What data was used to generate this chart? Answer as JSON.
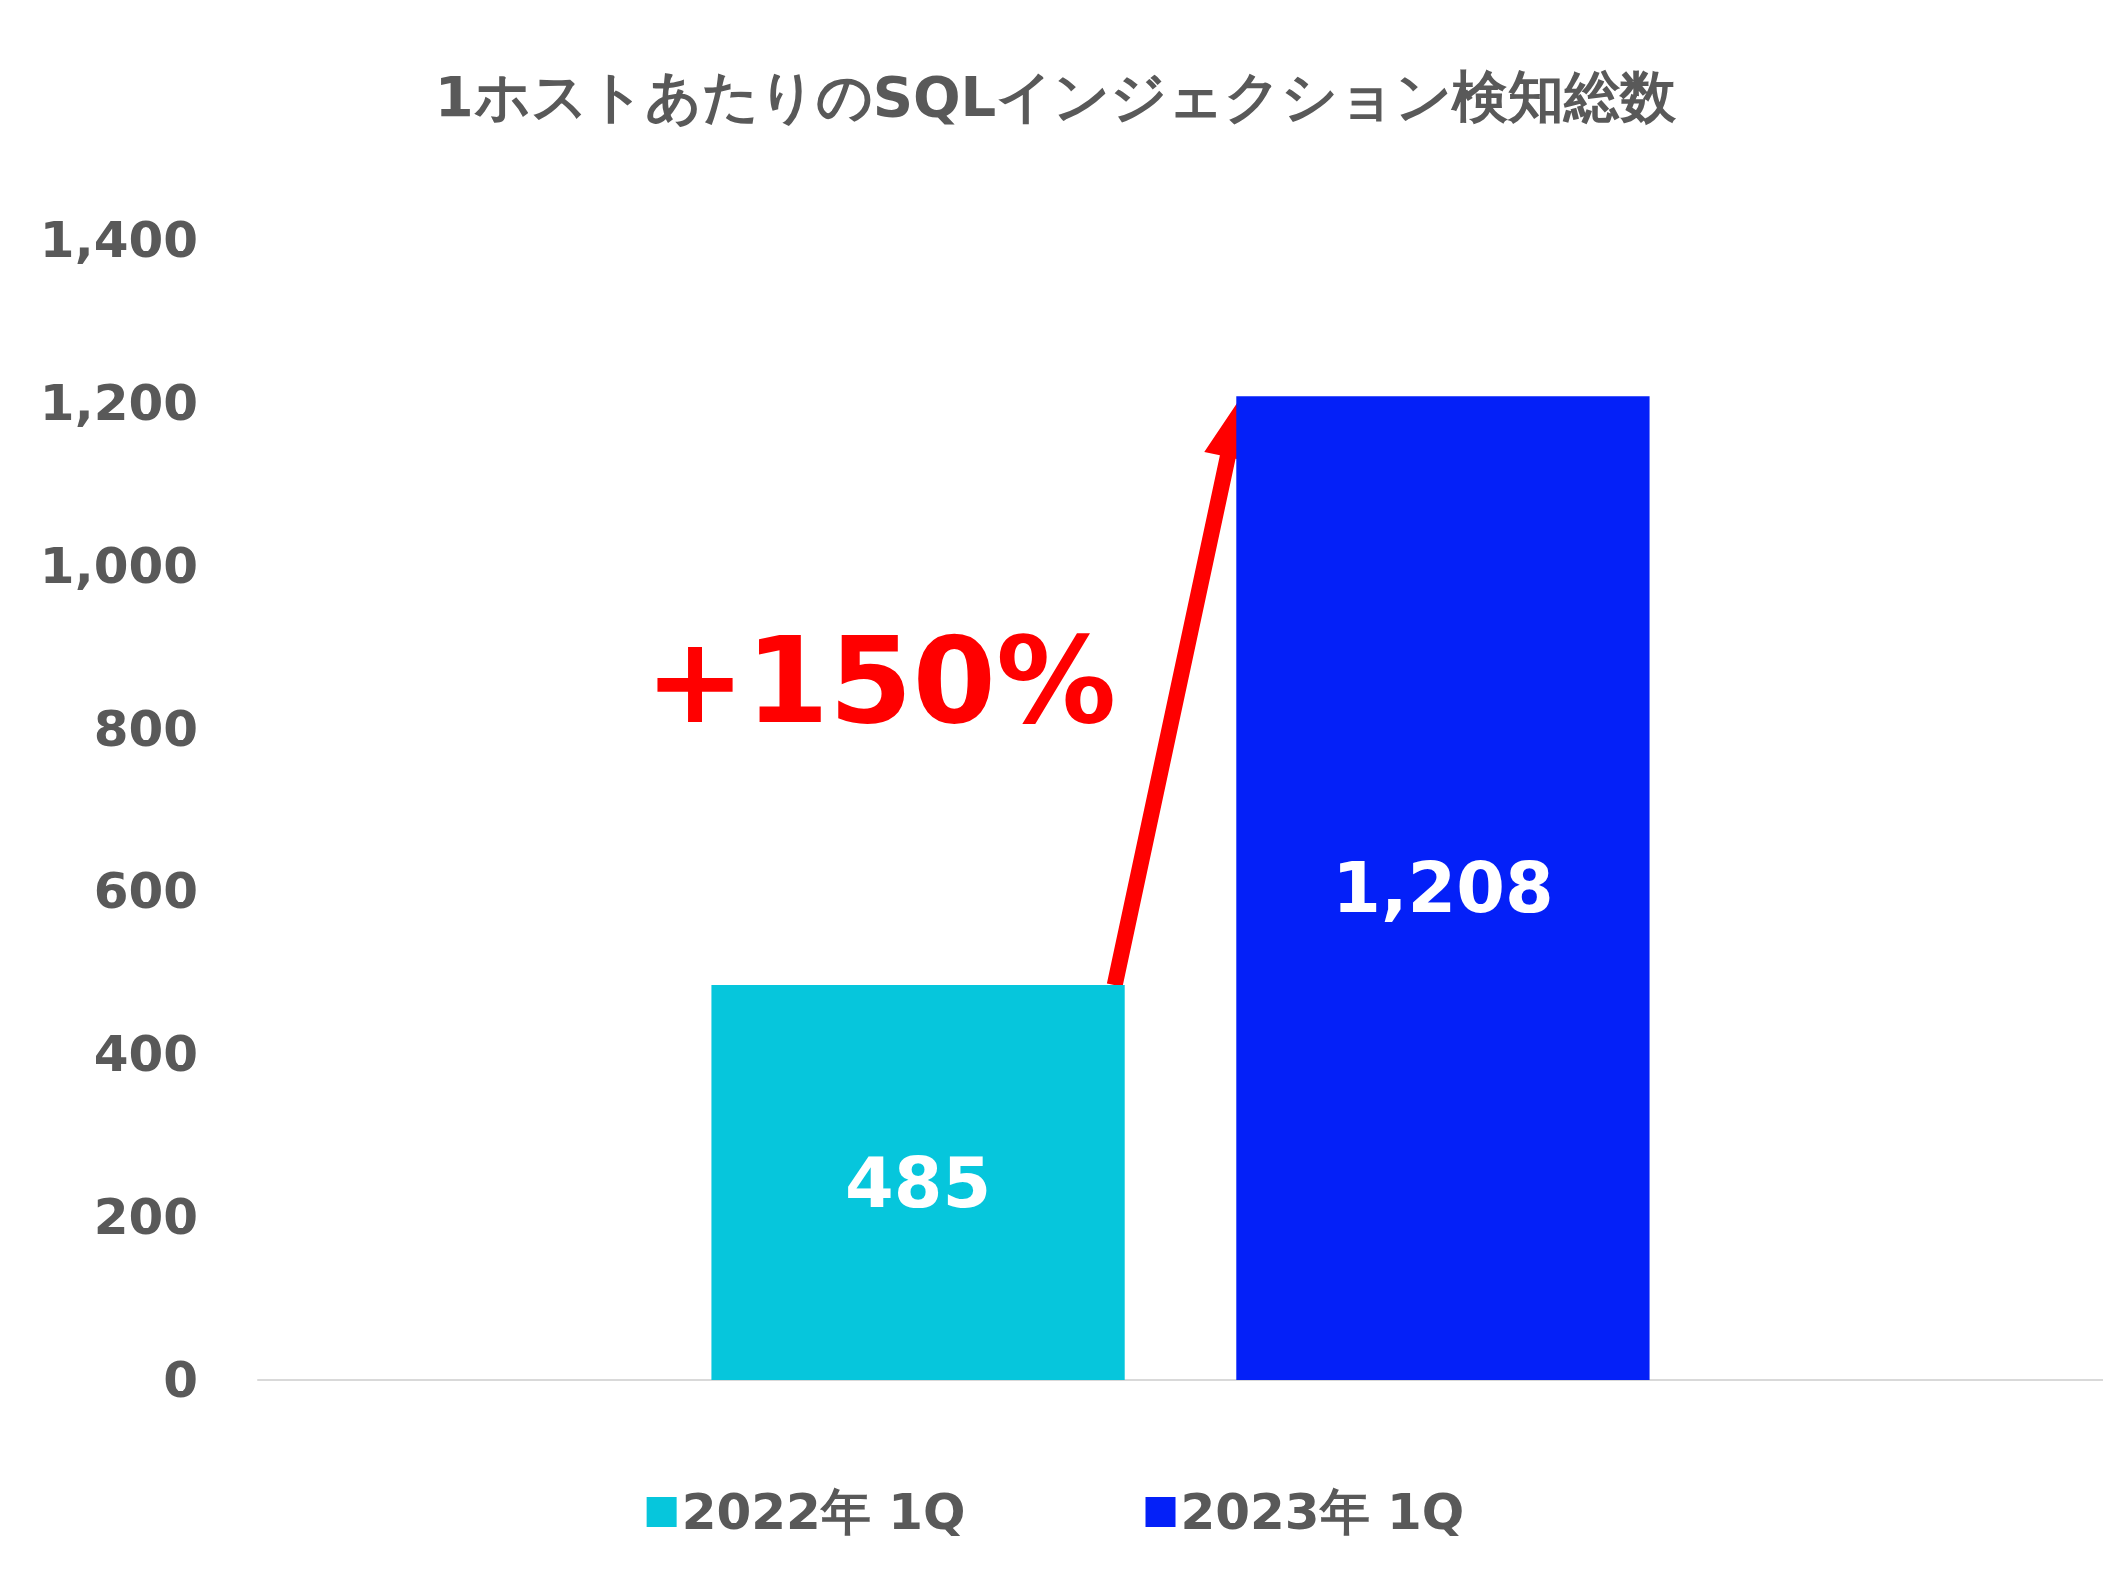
{
  "chart_data": {
    "type": "bar",
    "title": "1ホストあたりのSQLインジェクション検知総数",
    "categories": [
      null
    ],
    "series": [
      {
        "name": "2022年 1Q",
        "color": "#06c6dc",
        "values": [
          485
        ],
        "value_labels": [
          "485"
        ]
      },
      {
        "name": "2023年 1Q",
        "color": "#0420f8",
        "values": [
          1208
        ],
        "value_labels": [
          "1,208"
        ]
      }
    ],
    "ylim": [
      0,
      1400
    ],
    "yticks": [
      {
        "value": 0,
        "label": "0"
      },
      {
        "value": 200,
        "label": "200"
      },
      {
        "value": 400,
        "label": "400"
      },
      {
        "value": 600,
        "label": "600"
      },
      {
        "value": 800,
        "label": "800"
      },
      {
        "value": 1000,
        "label": "1,000"
      },
      {
        "value": 1200,
        "label": "1,200"
      },
      {
        "value": 1400,
        "label": "1,400"
      }
    ],
    "grid": false,
    "legend": "bottom",
    "tick_labels": "y",
    "annotations": [
      "+150%"
    ]
  }
}
